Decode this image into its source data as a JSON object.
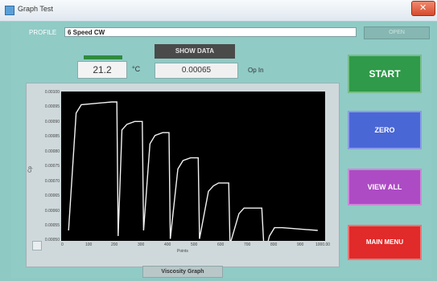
{
  "window": {
    "title": "Graph Test"
  },
  "profile": {
    "label": "PROFILE",
    "value": "6 Speed CW",
    "open_label": "OPEN"
  },
  "temperature": {
    "value": "21.2",
    "unit": "°C"
  },
  "data_panel": {
    "show_data_label": "SHOW DATA",
    "value": "0.00065",
    "unit": "Op In"
  },
  "buttons": {
    "start": "START",
    "zero": "ZERO",
    "view_all": "VIEW ALL",
    "main_menu": "MAIN MENU"
  },
  "graph": {
    "tab_label": "Viscosity Graph",
    "y_ticks": [
      "0.00100",
      "0.00095",
      "0.00090",
      "0.00085",
      "0.00080",
      "0.00075",
      "0.00070",
      "0.00065",
      "0.00060",
      "0.00055",
      "0.00050"
    ],
    "x_ticks": [
      "0",
      "100",
      "200",
      "300",
      "400",
      "500",
      "600",
      "700",
      "800",
      "900",
      "1000.00"
    ],
    "xlabel": "Points",
    "ylabel": "Cp"
  },
  "chart_data": {
    "type": "line",
    "title": "",
    "xlabel": "Points",
    "ylabel": "Cp",
    "xlim": [
      0,
      1000
    ],
    "ylim": [
      0.0005,
      0.001
    ],
    "series": [
      {
        "x": [
          10,
          40,
          60,
          180,
          200,
          205,
          220,
          240,
          270,
          300,
          305,
          330,
          350,
          380,
          405,
          410,
          440,
          460,
          490,
          520,
          525,
          560,
          580,
          600,
          640,
          645,
          680,
          700,
          730,
          770,
          780,
          800,
          820,
          850,
          990
        ],
        "y": [
          0.00052,
          0.00094,
          0.00097,
          0.00098,
          0.00098,
          0.0005,
          0.00088,
          0.0009,
          0.00091,
          0.00091,
          0.00052,
          0.00083,
          0.00086,
          0.00087,
          0.00087,
          0.00049,
          0.00074,
          0.00077,
          0.00078,
          0.00078,
          0.00049,
          0.00066,
          0.00068,
          0.00069,
          0.00069,
          0.00047,
          0.00058,
          0.0006,
          0.0006,
          0.0006,
          0.00043,
          0.0005,
          0.00053,
          0.00053,
          0.00052
        ]
      }
    ],
    "colors": {
      "line": "#f2f2f2",
      "background": "#000000"
    }
  }
}
